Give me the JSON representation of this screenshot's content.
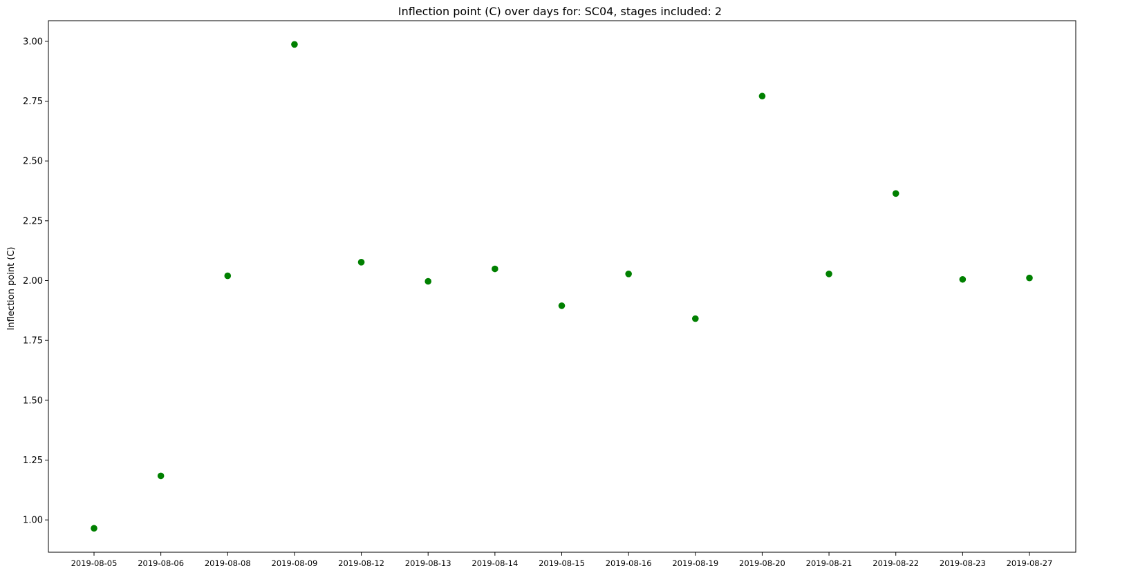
{
  "chart_data": {
    "type": "scatter",
    "title": "Inflection point (C) over days for: SC04, stages included: 2",
    "xlabel": "",
    "ylabel": "Inflection point (C)",
    "categories": [
      "2019-08-05",
      "2019-08-06",
      "2019-08-08",
      "2019-08-09",
      "2019-08-12",
      "2019-08-13",
      "2019-08-14",
      "2019-08-15",
      "2019-08-16",
      "2019-08-19",
      "2019-08-20",
      "2019-08-21",
      "2019-08-22",
      "2019-08-23",
      "2019-08-27"
    ],
    "values": [
      0.965,
      1.184,
      2.02,
      2.987,
      2.077,
      1.997,
      2.049,
      1.895,
      2.028,
      1.841,
      2.771,
      2.028,
      2.364,
      2.005,
      2.011
    ],
    "ylim": [
      0.865,
      3.086
    ],
    "yticks": [
      1.0,
      1.25,
      1.5,
      1.75,
      2.0,
      2.25,
      2.5,
      2.75,
      3.0
    ],
    "ytick_labels": [
      "1.00",
      "1.25",
      "1.50",
      "1.75",
      "2.00",
      "2.25",
      "2.50",
      "2.75",
      "3.00"
    ],
    "grid": false,
    "marker_color": "#008000"
  }
}
